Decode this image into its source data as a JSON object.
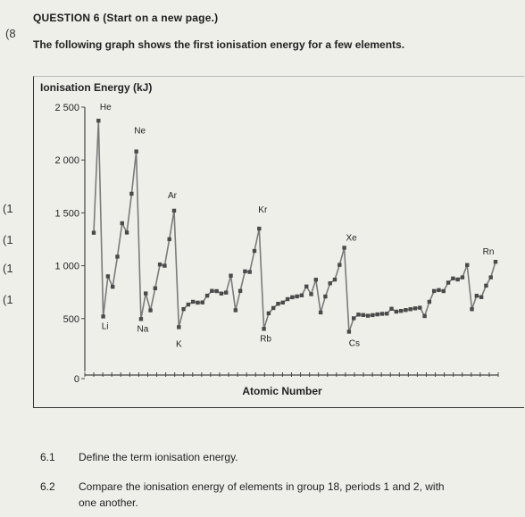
{
  "margin_marks": [
    "(8",
    "(1",
    "(1",
    "(1",
    "(1"
  ],
  "question": {
    "title": "QUESTION 6 (Start on a new page.)",
    "intro": "The following graph shows the first ionisation energy for a few elements."
  },
  "chart_data": {
    "type": "line",
    "title": "Ionisation Energy (kJ)",
    "xlabel": "Atomic Number",
    "ylabel": "Ionisation Energy (kJ)",
    "ylim": [
      0,
      2500
    ],
    "yticks": [
      "2 500",
      "2 000",
      "1 500",
      "1 000",
      "500",
      "0"
    ],
    "ytick_values": [
      2500,
      2000,
      1500,
      1000,
      500,
      0
    ],
    "grid": false,
    "x": [
      1,
      2,
      3,
      4,
      5,
      6,
      7,
      8,
      9,
      10,
      11,
      12,
      13,
      14,
      15,
      16,
      17,
      18,
      19,
      20,
      21,
      22,
      23,
      24,
      25,
      26,
      27,
      28,
      29,
      30,
      31,
      32,
      33,
      34,
      35,
      36,
      37,
      38,
      39,
      40,
      41,
      42,
      43,
      44,
      45,
      46,
      47,
      48,
      49,
      50,
      51,
      52,
      53,
      54,
      55,
      56,
      57,
      58,
      59,
      60,
      61,
      62,
      63,
      64,
      65,
      66,
      67,
      68,
      69,
      70,
      71,
      72,
      73,
      74,
      75,
      76,
      77,
      78,
      79,
      80,
      81,
      82,
      83,
      84,
      85,
      86
    ],
    "values": [
      1312,
      2372,
      520,
      900,
      801,
      1086,
      1402,
      1314,
      1681,
      2081,
      496,
      738,
      578,
      787,
      1012,
      1000,
      1251,
      1521,
      419,
      590,
      633,
      659,
      651,
      653,
      717,
      762,
      760,
      737,
      746,
      906,
      579,
      762,
      947,
      941,
      1140,
      1351,
      403,
      550,
      600,
      640,
      652,
      684,
      702,
      710,
      720,
      804,
      731,
      868,
      558,
      709,
      834,
      869,
      1008,
      1170,
      376,
      503,
      538,
      534,
      527,
      533,
      540,
      545,
      547,
      593,
      566,
      573,
      581,
      589,
      597,
      603,
      524,
      659,
      761,
      770,
      760,
      840,
      880,
      870,
      890,
      1007,
      589,
      716,
      703,
      812,
      890,
      1037
    ],
    "labels": [
      {
        "x": 2,
        "text": "He"
      },
      {
        "x": 3,
        "text": "Li"
      },
      {
        "x": 10,
        "text": "Ne"
      },
      {
        "x": 11,
        "text": "Na"
      },
      {
        "x": 18,
        "text": "Ar"
      },
      {
        "x": 19,
        "text": "K"
      },
      {
        "x": 36,
        "text": "Kr"
      },
      {
        "x": 37,
        "text": "Rb"
      },
      {
        "x": 54,
        "text": "Xe"
      },
      {
        "x": 55,
        "text": "Cs"
      },
      {
        "x": 86,
        "text": "Rn"
      }
    ],
    "colors": {
      "line": "#7a7a7a",
      "marker": "#4a4a4a",
      "axis": "#444444"
    }
  },
  "questions": [
    {
      "number": "6.1",
      "text": "Define the term ionisation energy."
    },
    {
      "number": "6.2",
      "text": "Compare the ionisation energy of elements in group 18, periods 1 and 2, with",
      "text2": "one another."
    }
  ]
}
